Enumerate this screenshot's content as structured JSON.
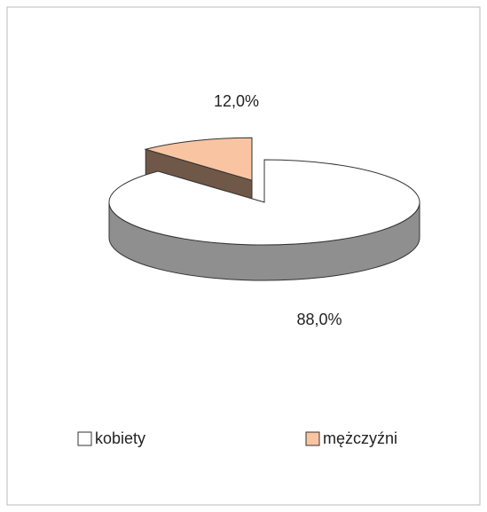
{
  "chart_data": {
    "type": "pie",
    "categories": [
      "kobiety",
      "mężczyźni"
    ],
    "values": [
      88,
      12
    ],
    "value_labels": [
      "88,0%",
      "12,0%"
    ],
    "colors": [
      "#ffffff",
      "#f8c4a2"
    ],
    "exploded": [
      false,
      true
    ],
    "legend": "bottom"
  }
}
